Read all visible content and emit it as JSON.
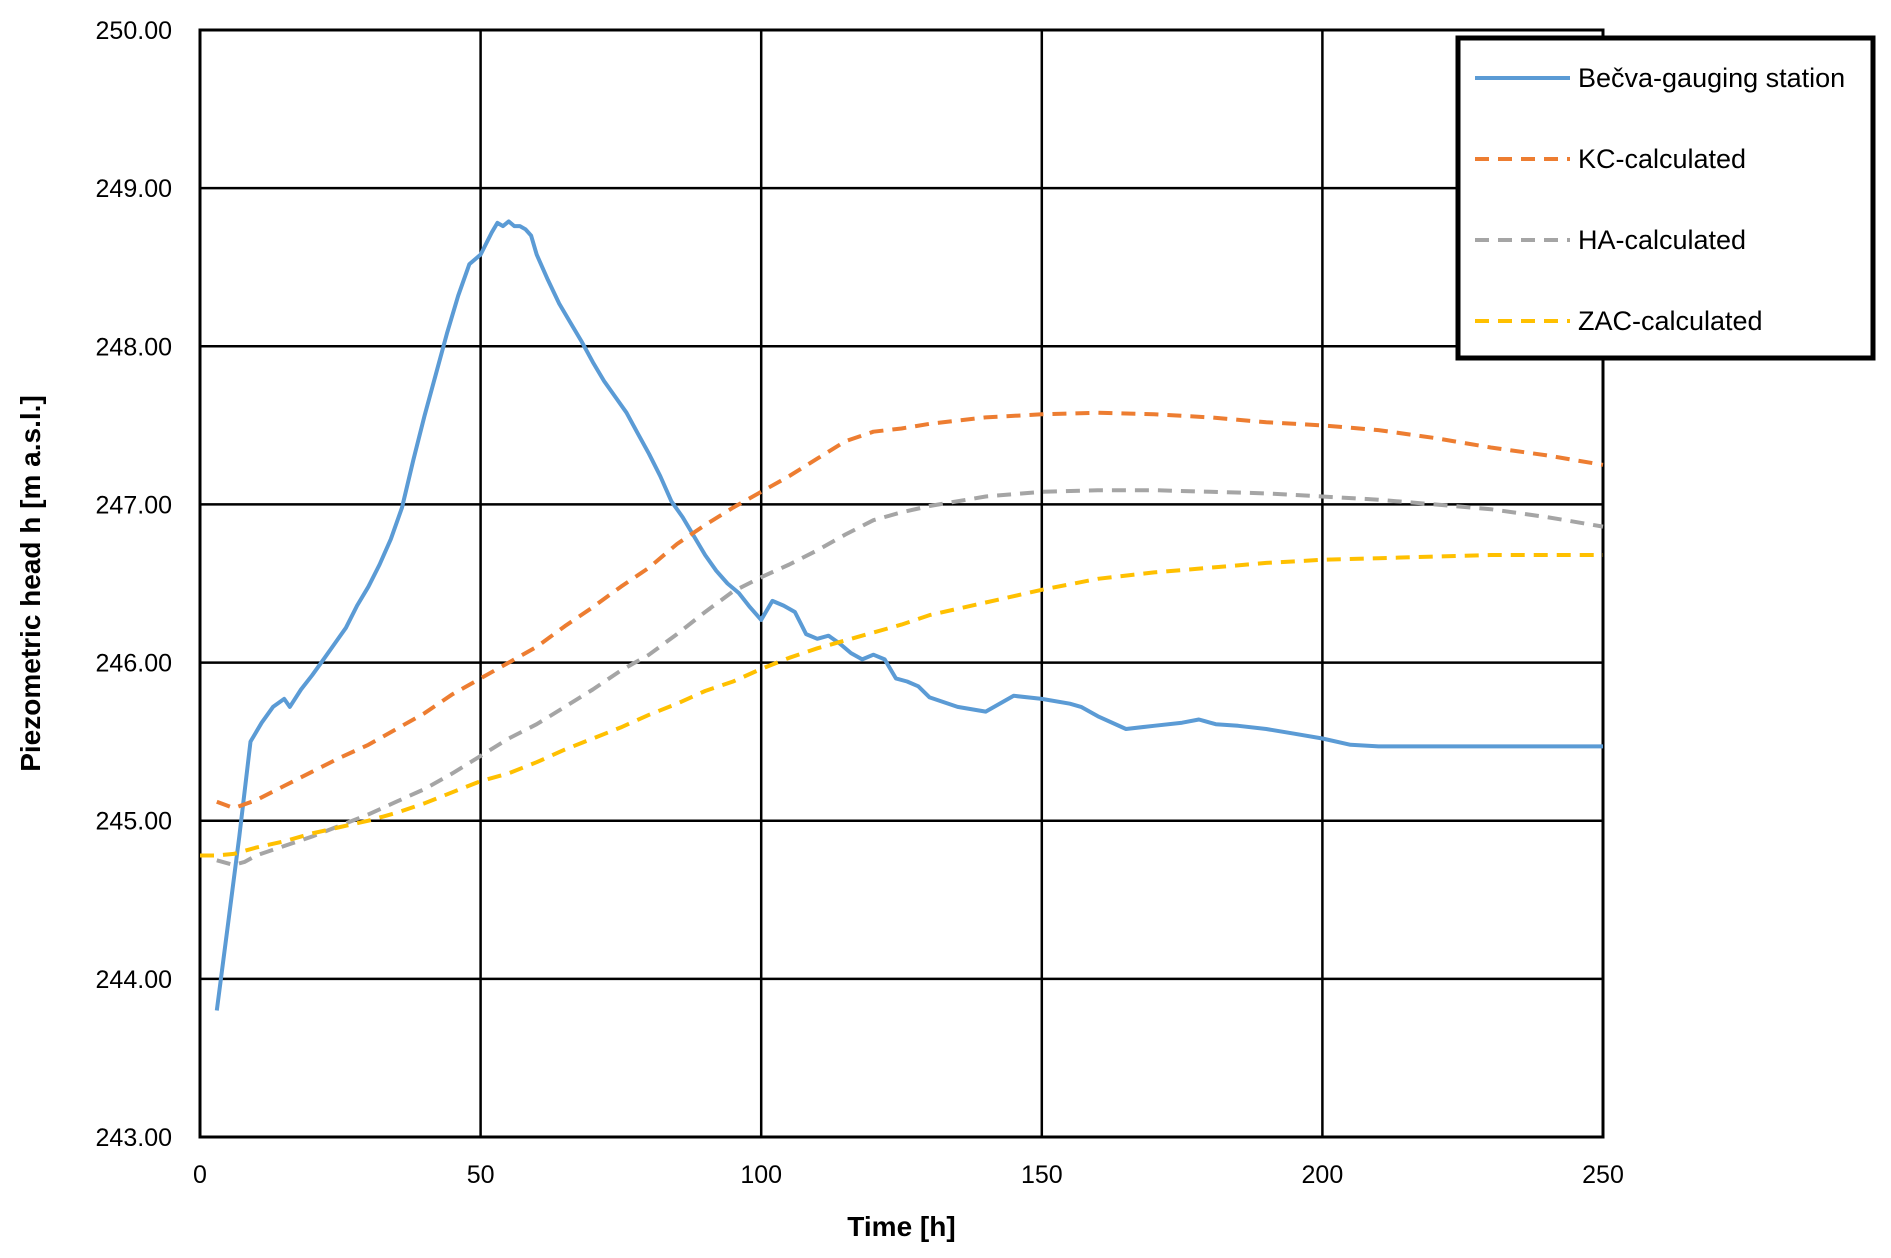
{
  "chart_data": {
    "type": "line",
    "title": "",
    "xlabel": "Time [h]",
    "ylabel": "Piezometric head h [m a.s.l.]",
    "xlim": [
      0,
      250
    ],
    "ylim": [
      243,
      250
    ],
    "xticks": [
      0,
      50,
      100,
      150,
      200,
      250
    ],
    "yticks": [
      243,
      244,
      245,
      246,
      247,
      248,
      249,
      250
    ],
    "xtick_labels": [
      "0",
      "50",
      "100",
      "150",
      "200",
      "250"
    ],
    "ytick_labels": [
      "243.00",
      "244.00",
      "245.00",
      "246.00",
      "247.00",
      "248.00",
      "249.00",
      "250.00"
    ],
    "grid": true,
    "legend_position": "top-right",
    "series": [
      {
        "name": "Bečva-gauging station",
        "color": "#5B9BD5",
        "style": "solid",
        "x": [
          3,
          5,
          7,
          9,
          11,
          13,
          15,
          16,
          18,
          20,
          22,
          24,
          26,
          28,
          30,
          32,
          34,
          36,
          38,
          40,
          42,
          44,
          46,
          48,
          50,
          52,
          53,
          54,
          55,
          56,
          57,
          58,
          59,
          60,
          62,
          64,
          66,
          68,
          70,
          72,
          74,
          76,
          78,
          80,
          82,
          84,
          86,
          88,
          90,
          92,
          94,
          96,
          98,
          100,
          102,
          104,
          106,
          107,
          108,
          110,
          112,
          114,
          116,
          118,
          120,
          122,
          124,
          126,
          128,
          130,
          135,
          140,
          145,
          150,
          155,
          157,
          158,
          160,
          165,
          170,
          175,
          178,
          179,
          180,
          181,
          185,
          190,
          195,
          200,
          205,
          210,
          220,
          230,
          240,
          250
        ],
        "y": [
          243.8,
          244.35,
          244.9,
          245.5,
          245.62,
          245.72,
          245.77,
          245.72,
          245.83,
          245.92,
          246.02,
          246.12,
          246.22,
          246.36,
          246.48,
          246.62,
          246.78,
          246.98,
          247.28,
          247.56,
          247.82,
          248.08,
          248.32,
          248.52,
          248.58,
          248.72,
          248.78,
          248.76,
          248.79,
          248.76,
          248.76,
          248.74,
          248.7,
          248.58,
          248.42,
          248.27,
          248.15,
          248.03,
          247.9,
          247.78,
          247.68,
          247.58,
          247.45,
          247.32,
          247.18,
          247.02,
          246.92,
          246.8,
          246.68,
          246.58,
          246.5,
          246.44,
          246.35,
          246.27,
          246.39,
          246.36,
          246.32,
          246.25,
          246.18,
          246.15,
          246.17,
          246.12,
          246.06,
          246.02,
          246.05,
          246.02,
          245.9,
          245.88,
          245.85,
          245.78,
          245.72,
          245.69,
          245.79,
          245.77,
          245.74,
          245.72,
          245.7,
          245.66,
          245.58,
          245.6,
          245.62,
          245.64,
          245.63,
          245.62,
          245.61,
          245.6,
          245.58,
          245.55,
          245.52,
          245.48,
          245.47,
          245.47,
          245.47,
          245.47,
          245.47
        ]
      },
      {
        "name": "KC-calculated",
        "color": "#ED7D31",
        "style": "dashed",
        "x": [
          3,
          6,
          10,
          15,
          20,
          25,
          30,
          35,
          40,
          45,
          50,
          55,
          60,
          65,
          70,
          75,
          80,
          85,
          90,
          95,
          100,
          105,
          110,
          115,
          120,
          125,
          130,
          135,
          140,
          150,
          160,
          170,
          180,
          190,
          200,
          210,
          220,
          230,
          240,
          250
        ],
        "y": [
          245.12,
          245.08,
          245.13,
          245.22,
          245.31,
          245.4,
          245.48,
          245.58,
          245.68,
          245.8,
          245.9,
          246.0,
          246.1,
          246.23,
          246.35,
          246.48,
          246.6,
          246.75,
          246.87,
          246.98,
          247.08,
          247.18,
          247.29,
          247.4,
          247.46,
          247.48,
          247.51,
          247.53,
          247.55,
          247.57,
          247.58,
          247.57,
          247.55,
          247.52,
          247.5,
          247.47,
          247.42,
          247.36,
          247.31,
          247.25
        ]
      },
      {
        "name": "HA-calculated",
        "color": "#A5A5A5",
        "style": "dashed",
        "x": [
          3,
          6,
          8,
          10,
          15,
          20,
          25,
          30,
          35,
          40,
          45,
          50,
          55,
          60,
          65,
          70,
          75,
          80,
          85,
          90,
          95,
          100,
          105,
          110,
          115,
          120,
          125,
          130,
          140,
          150,
          160,
          170,
          180,
          190,
          200,
          210,
          220,
          230,
          240,
          250
        ],
        "y": [
          244.75,
          244.72,
          244.74,
          244.78,
          244.84,
          244.9,
          244.97,
          245.04,
          245.12,
          245.2,
          245.3,
          245.41,
          245.52,
          245.61,
          245.72,
          245.83,
          245.95,
          246.05,
          246.18,
          246.32,
          246.45,
          246.54,
          246.62,
          246.71,
          246.81,
          246.9,
          246.95,
          246.99,
          247.05,
          247.08,
          247.09,
          247.09,
          247.08,
          247.07,
          247.05,
          247.03,
          247.0,
          246.97,
          246.92,
          246.86
        ]
      },
      {
        "name": "ZAC-calculated",
        "color": "#FFC000",
        "style": "dashed",
        "x": [
          0,
          3,
          6,
          10,
          15,
          20,
          25,
          30,
          35,
          40,
          45,
          50,
          55,
          60,
          65,
          70,
          75,
          80,
          85,
          90,
          95,
          100,
          105,
          110,
          115,
          120,
          125,
          130,
          140,
          150,
          160,
          170,
          180,
          190,
          200,
          210,
          220,
          230,
          240,
          250
        ],
        "y": [
          244.78,
          244.78,
          244.79,
          244.83,
          244.87,
          244.92,
          244.96,
          245.0,
          245.05,
          245.11,
          245.18,
          245.25,
          245.3,
          245.37,
          245.45,
          245.52,
          245.59,
          245.67,
          245.74,
          245.82,
          245.88,
          245.96,
          246.03,
          246.09,
          246.14,
          246.19,
          246.24,
          246.3,
          246.38,
          246.46,
          246.53,
          246.57,
          246.6,
          246.63,
          246.65,
          246.66,
          246.67,
          246.68,
          246.68,
          246.68
        ]
      }
    ]
  }
}
